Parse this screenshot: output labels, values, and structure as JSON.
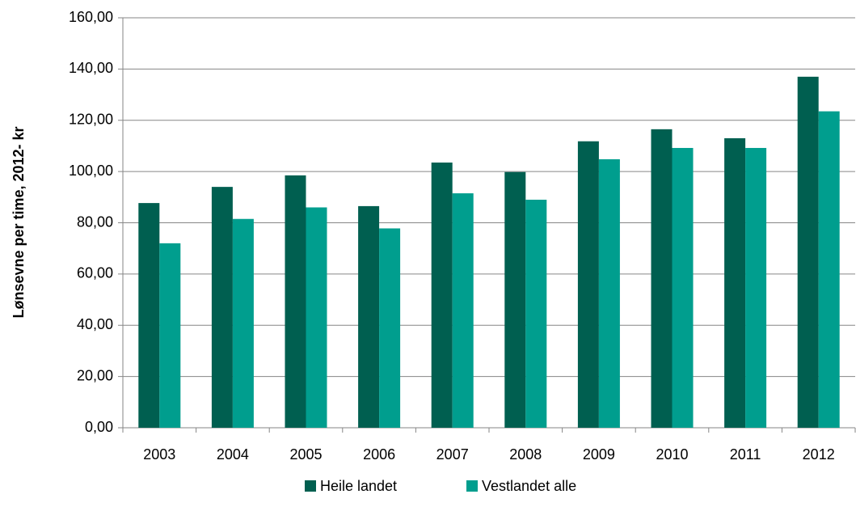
{
  "chart_data": {
    "type": "bar",
    "y_label": "Lønsevne per time, 2012- kr",
    "categories": [
      "2003",
      "2004",
      "2005",
      "2006",
      "2007",
      "2008",
      "2009",
      "2010",
      "2011",
      "2012"
    ],
    "series": [
      {
        "name": "Heile landet",
        "color": "#005f50",
        "values": [
          87.7,
          94.0,
          98.5,
          86.5,
          103.5,
          99.8,
          111.8,
          116.5,
          113.0,
          137.0
        ]
      },
      {
        "name": "Vestlandet alle",
        "color": "#009e8e",
        "values": [
          72.0,
          81.5,
          86.0,
          77.8,
          91.5,
          89.0,
          104.8,
          109.2,
          109.2,
          123.5
        ]
      }
    ],
    "ylim": [
      0,
      160
    ],
    "yticks": [
      {
        "value": 0,
        "label": "0,00"
      },
      {
        "value": 20,
        "label": "20,00"
      },
      {
        "value": 40,
        "label": "40,00"
      },
      {
        "value": 60,
        "label": "60,00"
      },
      {
        "value": 80,
        "label": "80,00"
      },
      {
        "value": 100,
        "label": "100,00"
      },
      {
        "value": 120,
        "label": "120,00"
      },
      {
        "value": 140,
        "label": "140,00"
      },
      {
        "value": 160,
        "label": "160,00"
      }
    ],
    "grid": true,
    "legend": "bottom"
  }
}
